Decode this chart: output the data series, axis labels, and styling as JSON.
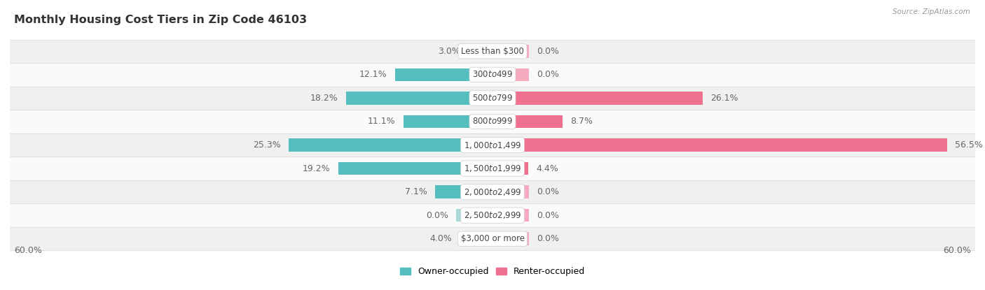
{
  "title": "Monthly Housing Cost Tiers in Zip Code 46103",
  "source": "Source: ZipAtlas.com",
  "categories": [
    "Less than $300",
    "$300 to $499",
    "$500 to $799",
    "$800 to $999",
    "$1,000 to $1,499",
    "$1,500 to $1,999",
    "$2,000 to $2,499",
    "$2,500 to $2,999",
    "$3,000 or more"
  ],
  "owner_values": [
    3.0,
    12.1,
    18.2,
    11.1,
    25.3,
    19.2,
    7.1,
    0.0,
    4.0
  ],
  "renter_values": [
    0.0,
    0.0,
    26.1,
    8.7,
    56.5,
    4.4,
    0.0,
    0.0,
    0.0
  ],
  "owner_color": "#55BFBF",
  "renter_color": "#F07090",
  "owner_color_light": "#A8D8D8",
  "renter_color_light": "#F5AABE",
  "row_bg_even": "#f0f0f0",
  "row_bg_odd": "#fafafa",
  "grid_color": "#e0e0e0",
  "axis_limit": 60.0,
  "stub_size": 4.5,
  "label_fontsize": 9.0,
  "title_fontsize": 11.5,
  "category_fontsize": 8.5,
  "value_color": "#666666",
  "title_color": "#333333"
}
